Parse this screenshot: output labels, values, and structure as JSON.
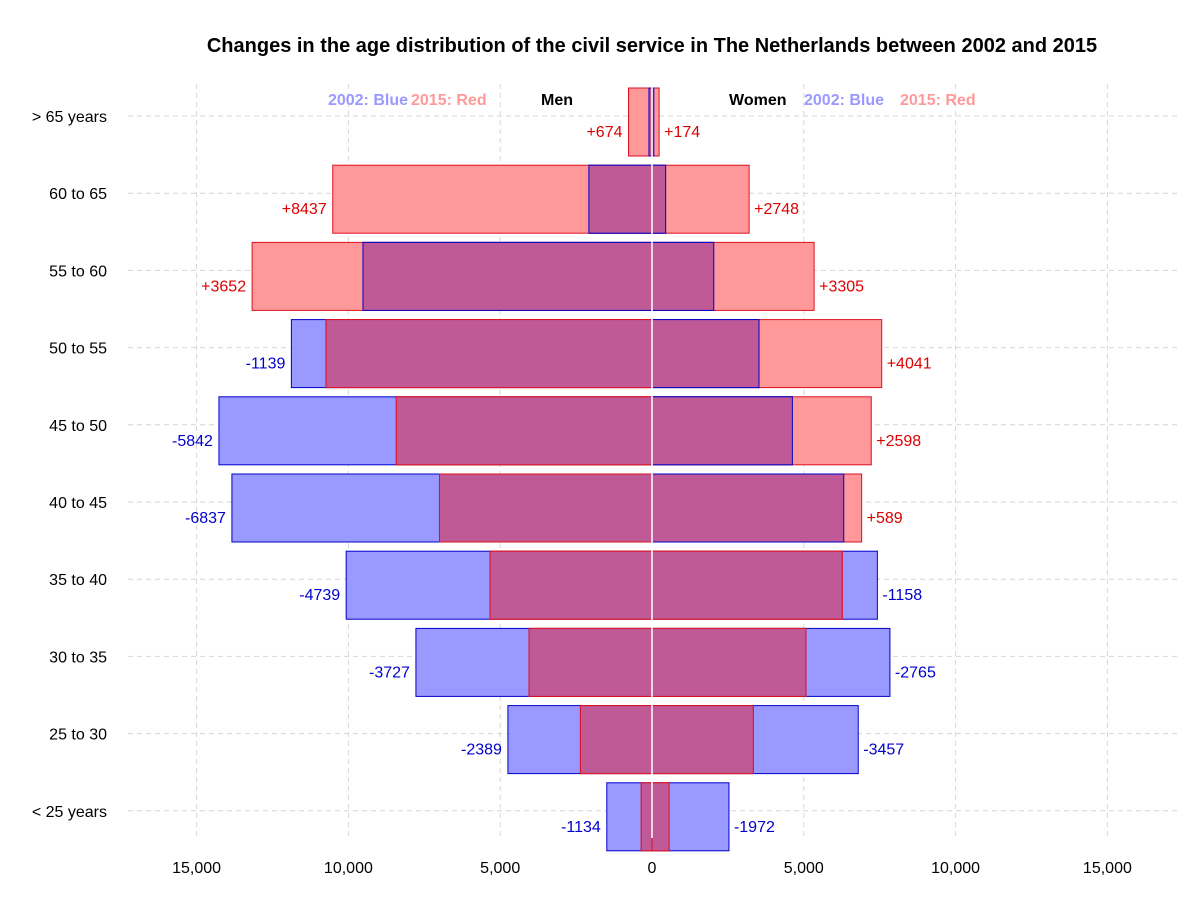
{
  "chart_data": {
    "type": "bar",
    "subtype": "population-pyramid-overlay",
    "title": "Changes in the age distribution of the civil service in The Netherlands between 2002 and 2015",
    "categories": [
      "> 65 years",
      "60 to 65",
      "55 to 60",
      "50 to 55",
      "45 to 50",
      "40 to 45",
      "35 to 40",
      "30 to 35",
      "25 to 30",
      "< 25 years"
    ],
    "xlim": [
      -16000,
      16000
    ],
    "x_ticks": [
      -15000,
      -10000,
      -5000,
      0,
      5000,
      10000,
      15000
    ],
    "x_tick_labels": [
      "15,000",
      "10,000",
      "5,000",
      "0",
      "5,000",
      "10,000",
      "15,000"
    ],
    "grid": true,
    "legend": {
      "men_label": "Men",
      "women_label": "Women",
      "blue_label": "2002: Blue",
      "red_label": "2015: Red"
    },
    "colors": {
      "blue_fill": "#9999ff",
      "blue_stroke": "#0000cc",
      "red_fill": "#ff9999",
      "red_stroke": "#dd1122",
      "overlap": "#c05a96",
      "blue_text": "#0000cc",
      "red_text": "#dd0000",
      "legend_blue": "#9999ff",
      "legend_red": "#ff9999"
    },
    "series": [
      {
        "name": "2002 Men",
        "values": [
          100,
          2079,
          9520,
          11878,
          14264,
          13837,
          10073,
          7776,
          4746,
          1489
        ]
      },
      {
        "name": "2015 Men",
        "values": [
          774,
          10516,
          13172,
          10739,
          8422,
          7000,
          5334,
          4049,
          2357,
          355
        ]
      },
      {
        "name": "2002 Women",
        "values": [
          60,
          451,
          2035,
          3525,
          4624,
          6316,
          7424,
          7837,
          6793,
          2535
        ]
      },
      {
        "name": "2015 Women",
        "values": [
          234,
          3199,
          5340,
          7566,
          7222,
          6905,
          6266,
          5072,
          3336,
          563
        ]
      }
    ],
    "annotations": {
      "men": [
        "+674",
        "+8437",
        "+3652",
        "-1139",
        "-5842",
        "-6837",
        "-4739",
        "-3727",
        "-2389",
        "-1134"
      ],
      "women": [
        "+174",
        "+2748",
        "+3305",
        "+4041",
        "+2598",
        "+589",
        "-1158",
        "-2765",
        "-3457",
        "-1972"
      ]
    }
  }
}
